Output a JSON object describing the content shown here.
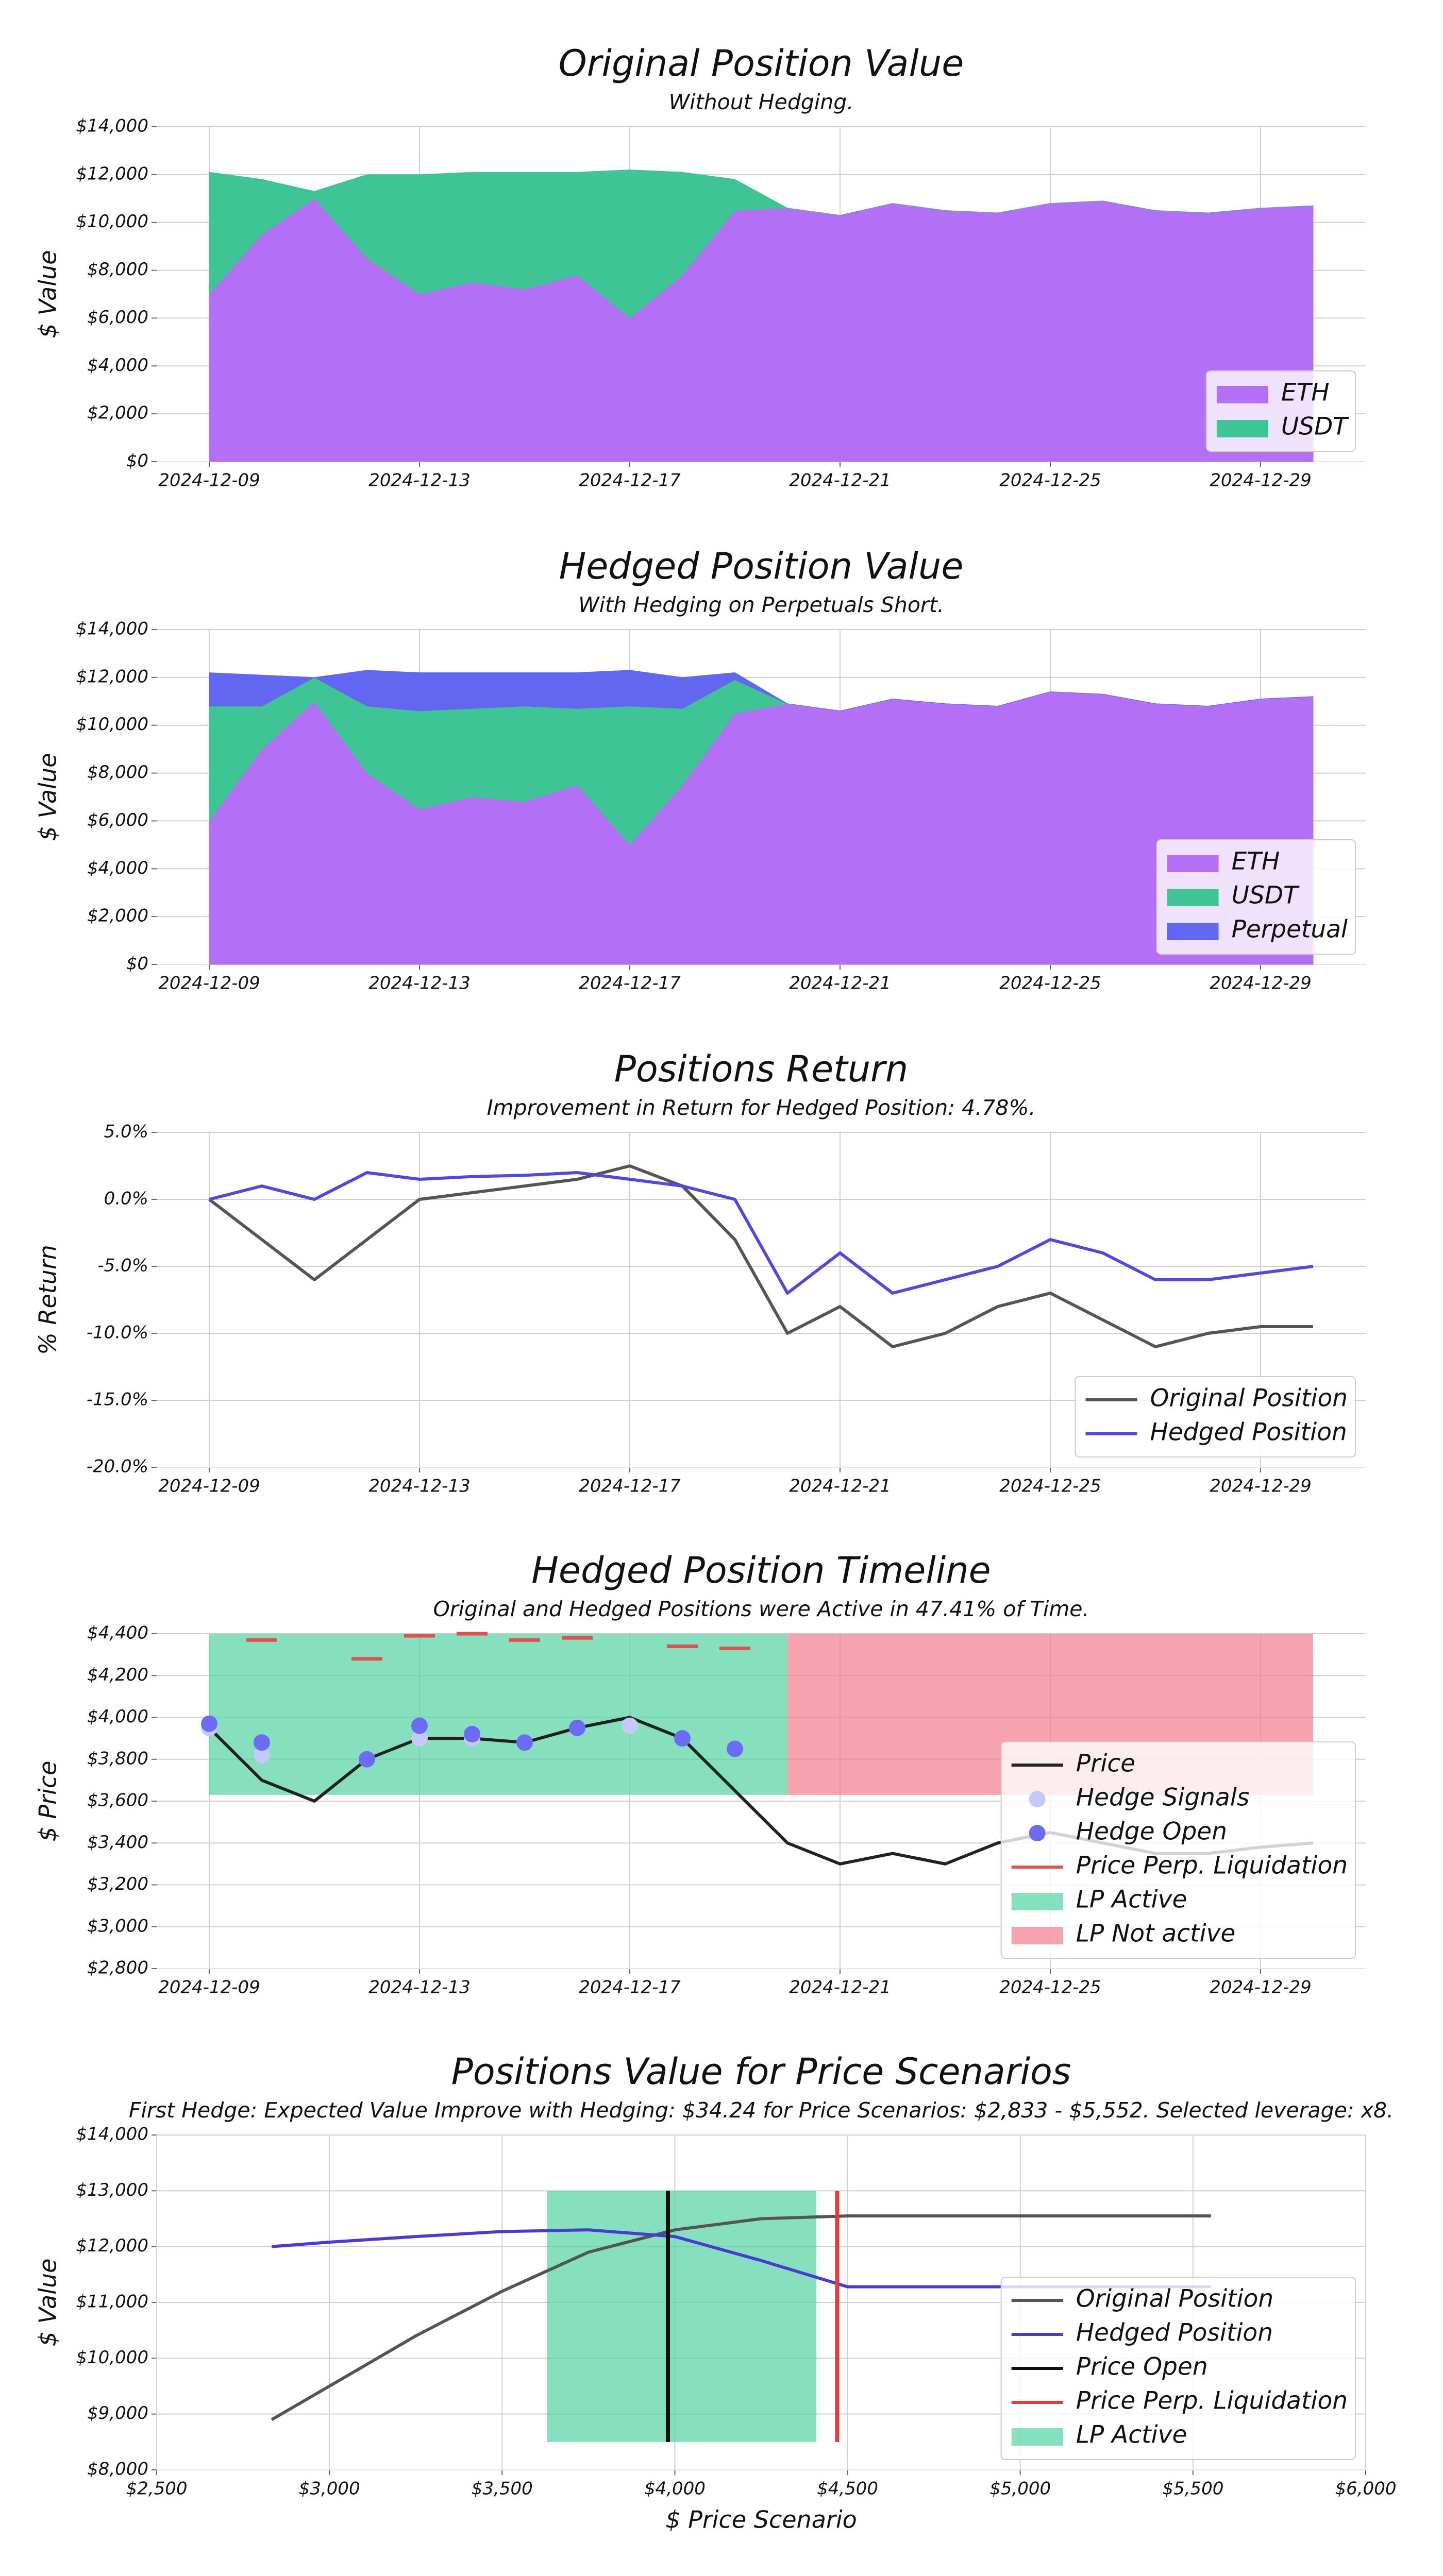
{
  "chart_data": [
    {
      "type": "area",
      "title": "Original Position Value",
      "subtitle": "Without Hedging.",
      "ylabel": "$ Value",
      "x": [
        "2024-12-09",
        "2024-12-10",
        "2024-12-11",
        "2024-12-12",
        "2024-12-13",
        "2024-12-14",
        "2024-12-15",
        "2024-12-16",
        "2024-12-17",
        "2024-12-18",
        "2024-12-19",
        "2024-12-20",
        "2024-12-21",
        "2024-12-22",
        "2024-12-23",
        "2024-12-24",
        "2024-12-25",
        "2024-12-26",
        "2024-12-27",
        "2024-12-28",
        "2024-12-29",
        "2024-12-30"
      ],
      "series": [
        {
          "name": "ETH",
          "kind": "area",
          "color": "#b36ff6",
          "values": [
            7000,
            9500,
            11000,
            8500,
            7000,
            7500,
            7200,
            7800,
            6000,
            7800,
            10500,
            10600,
            10300,
            10800,
            10500,
            10400,
            10800,
            10900,
            10500,
            10400,
            10600,
            10700
          ]
        },
        {
          "name": "USDT",
          "kind": "area",
          "color": "#3ec495",
          "values": [
            5100,
            2300,
            300,
            3500,
            5000,
            4600,
            4900,
            4300,
            6200,
            4300,
            1300,
            0,
            0,
            0,
            0,
            0,
            0,
            0,
            0,
            0,
            0,
            0
          ]
        }
      ],
      "xlim": [
        "2024-12-08",
        "2024-12-31"
      ],
      "xticks": [
        "2024-12-09",
        "2024-12-13",
        "2024-12-17",
        "2024-12-21",
        "2024-12-25",
        "2024-12-29"
      ],
      "ylim": [
        0,
        14000
      ],
      "yticks": [
        {
          "value": 0,
          "label": "$0"
        },
        {
          "value": 2000,
          "label": "$2,000"
        },
        {
          "value": 4000,
          "label": "$4,000"
        },
        {
          "value": 6000,
          "label": "$6,000"
        },
        {
          "value": 8000,
          "label": "$8,000"
        },
        {
          "value": 10000,
          "label": "$10,000"
        },
        {
          "value": 12000,
          "label": "$12,000"
        },
        {
          "value": 14000,
          "label": "$14,000"
        }
      ],
      "grid": true,
      "legend": "lower right"
    },
    {
      "type": "area",
      "title": "Hedged Position Value",
      "subtitle": "With Hedging on Perpetuals Short.",
      "ylabel": "$ Value",
      "x": [
        "2024-12-09",
        "2024-12-10",
        "2024-12-11",
        "2024-12-12",
        "2024-12-13",
        "2024-12-14",
        "2024-12-15",
        "2024-12-16",
        "2024-12-17",
        "2024-12-18",
        "2024-12-19",
        "2024-12-20",
        "2024-12-21",
        "2024-12-22",
        "2024-12-23",
        "2024-12-24",
        "2024-12-25",
        "2024-12-26",
        "2024-12-27",
        "2024-12-28",
        "2024-12-29",
        "2024-12-30"
      ],
      "series": [
        {
          "name": "ETH",
          "kind": "area",
          "color": "#b36ff6",
          "values": [
            6000,
            9000,
            11000,
            8000,
            6500,
            7000,
            6800,
            7500,
            5000,
            7500,
            10500,
            10900,
            10600,
            11100,
            10900,
            10800,
            11400,
            11300,
            10900,
            10800,
            11100,
            11200
          ]
        },
        {
          "name": "USDT",
          "kind": "area",
          "color": "#3ec495",
          "values": [
            4800,
            1800,
            1000,
            2800,
            4100,
            3700,
            4000,
            3200,
            5800,
            3200,
            1400,
            0,
            0,
            0,
            0,
            0,
            0,
            0,
            0,
            0,
            0,
            0
          ]
        },
        {
          "name": "Perpetual",
          "kind": "area",
          "color": "#6366f1",
          "values": [
            1400,
            1300,
            0,
            1500,
            1600,
            1500,
            1400,
            1500,
            1500,
            1300,
            300,
            0,
            0,
            0,
            0,
            0,
            0,
            0,
            0,
            0,
            0,
            0
          ]
        }
      ],
      "xlim": [
        "2024-12-08",
        "2024-12-31"
      ],
      "xticks": [
        "2024-12-09",
        "2024-12-13",
        "2024-12-17",
        "2024-12-21",
        "2024-12-25",
        "2024-12-29"
      ],
      "ylim": [
        0,
        14000
      ],
      "yticks": [
        {
          "value": 0,
          "label": "$0"
        },
        {
          "value": 2000,
          "label": "$2,000"
        },
        {
          "value": 4000,
          "label": "$4,000"
        },
        {
          "value": 6000,
          "label": "$6,000"
        },
        {
          "value": 8000,
          "label": "$8,000"
        },
        {
          "value": 10000,
          "label": "$10,000"
        },
        {
          "value": 12000,
          "label": "$12,000"
        },
        {
          "value": 14000,
          "label": "$14,000"
        }
      ],
      "grid": true,
      "legend": "lower right"
    },
    {
      "type": "line",
      "title": "Positions Return",
      "subtitle": "Improvement in Return for Hedged Position: 4.78%.",
      "ylabel": "% Return",
      "x": [
        "2024-12-09",
        "2024-12-10",
        "2024-12-11",
        "2024-12-12",
        "2024-12-13",
        "2024-12-14",
        "2024-12-15",
        "2024-12-16",
        "2024-12-17",
        "2024-12-18",
        "2024-12-19",
        "2024-12-20",
        "2024-12-21",
        "2024-12-22",
        "2024-12-23",
        "2024-12-24",
        "2024-12-25",
        "2024-12-26",
        "2024-12-27",
        "2024-12-28",
        "2024-12-29",
        "2024-12-30"
      ],
      "series": [
        {
          "name": "Original Position",
          "kind": "line",
          "color": "#555555",
          "values": [
            0,
            -3,
            -6,
            -3,
            0,
            0.5,
            1,
            1.5,
            2.5,
            1,
            -3,
            -10,
            -8,
            -11,
            -10,
            -8,
            -7,
            -9,
            -11,
            -10,
            -9.5,
            -9.5
          ]
        },
        {
          "name": "Hedged Position",
          "kind": "line",
          "color": "#5148e0",
          "values": [
            0,
            1,
            0,
            2,
            1.5,
            1.7,
            1.8,
            2,
            1.5,
            1,
            0,
            -7,
            -4,
            -7,
            -6,
            -5,
            -3,
            -4,
            -6,
            -6,
            -5.5,
            -5
          ]
        }
      ],
      "xlim": [
        "2024-12-08",
        "2024-12-31"
      ],
      "xticks": [
        "2024-12-09",
        "2024-12-13",
        "2024-12-17",
        "2024-12-21",
        "2024-12-25",
        "2024-12-29"
      ],
      "ylim": [
        -20,
        5
      ],
      "yticks": [
        {
          "value": -20,
          "label": "-20.0%"
        },
        {
          "value": -15,
          "label": "-15.0%"
        },
        {
          "value": -10,
          "label": "-10.0%"
        },
        {
          "value": -5,
          "label": "-5.0%"
        },
        {
          "value": 0,
          "label": "0.0%"
        },
        {
          "value": 5,
          "label": "5.0%"
        }
      ],
      "grid": true,
      "legend": "lower right"
    },
    {
      "type": "line",
      "title": "Hedged Position Timeline",
      "subtitle": "Original and Hedged Positions were Active in 47.41% of Time.",
      "ylabel": "$ Price",
      "x": [
        "2024-12-09",
        "2024-12-10",
        "2024-12-11",
        "2024-12-12",
        "2024-12-13",
        "2024-12-14",
        "2024-12-15",
        "2024-12-16",
        "2024-12-17",
        "2024-12-18",
        "2024-12-19",
        "2024-12-20",
        "2024-12-21",
        "2024-12-22",
        "2024-12-23",
        "2024-12-24",
        "2024-12-25",
        "2024-12-26",
        "2024-12-27",
        "2024-12-28",
        "2024-12-29",
        "2024-12-30"
      ],
      "series": [
        {
          "name": "Price",
          "kind": "line",
          "color": "#222222",
          "values": [
            3950,
            3700,
            3600,
            3800,
            3900,
            3900,
            3880,
            3950,
            4000,
            3900,
            3650,
            3400,
            3300,
            3350,
            3300,
            3400,
            3450,
            3400,
            3350,
            3350,
            3380,
            3400
          ]
        },
        {
          "name": "Hedge Signals",
          "kind": "scatter",
          "color": "#c4c9fa",
          "values": [
            3950,
            3820,
            null,
            3800,
            3900,
            3900,
            3880,
            3950,
            3960,
            3900,
            3850,
            null,
            null,
            null,
            null,
            null,
            null,
            null,
            null,
            null,
            null,
            null
          ]
        },
        {
          "name": "Hedge Open",
          "kind": "scatter",
          "color": "#6b6bf5",
          "values": [
            3970,
            3880,
            null,
            3800,
            3960,
            3920,
            3880,
            3950,
            null,
            3900,
            3850,
            null,
            null,
            null,
            null,
            null,
            null,
            null,
            null,
            null,
            null,
            null
          ]
        },
        {
          "name": "Price Perp. Liquidation",
          "kind": "dash",
          "color": "#e05050",
          "values": [
            null,
            4370,
            null,
            4280,
            4390,
            4400,
            4370,
            4380,
            null,
            4340,
            4330,
            null,
            null,
            null,
            null,
            null,
            null,
            null,
            null,
            null,
            null,
            null
          ]
        },
        {
          "name": "LP Active",
          "kind": "span",
          "color": "#52d3a3",
          "x": [
            "2024-12-09",
            "2024-12-20"
          ],
          "y": [
            3630,
            4400
          ]
        },
        {
          "name": "LP Not active",
          "kind": "span",
          "color": "#f47c8d",
          "x": [
            "2024-12-20",
            "2024-12-30"
          ],
          "y": [
            3630,
            4400
          ]
        }
      ],
      "xlim": [
        "2024-12-08",
        "2024-12-31"
      ],
      "xticks": [
        "2024-12-09",
        "2024-12-13",
        "2024-12-17",
        "2024-12-21",
        "2024-12-25",
        "2024-12-29"
      ],
      "ylim": [
        2800,
        4400
      ],
      "yticks": [
        {
          "value": 2800,
          "label": "$2,800"
        },
        {
          "value": 3000,
          "label": "$3,000"
        },
        {
          "value": 3200,
          "label": "$3,200"
        },
        {
          "value": 3400,
          "label": "$3,400"
        },
        {
          "value": 3600,
          "label": "$3,600"
        },
        {
          "value": 3800,
          "label": "$3,800"
        },
        {
          "value": 4000,
          "label": "$4,000"
        },
        {
          "value": 4200,
          "label": "$4,200"
        },
        {
          "value": 4400,
          "label": "$4,400"
        }
      ],
      "grid": true,
      "legend": "lower right"
    },
    {
      "type": "line",
      "title": "Positions Value for Price Scenarios",
      "subtitle": "First Hedge: Expected Value Improve with Hedging: $34.24 for Price Scenarios: $2,833 - $5,552. Selected leverage: x8.",
      "ylabel": "$ Value",
      "xlabel": "$ Price Scenario",
      "series": [
        {
          "name": "Original Position",
          "kind": "line",
          "color": "#555555",
          "x": [
            2833,
            3000,
            3250,
            3500,
            3750,
            4000,
            4250,
            4500,
            5000,
            5552
          ],
          "values": [
            8900,
            9500,
            10400,
            11200,
            11900,
            12300,
            12500,
            12550,
            12550,
            12550
          ]
        },
        {
          "name": "Hedged Position",
          "kind": "line",
          "color": "#4a3bd8",
          "x": [
            2833,
            3000,
            3250,
            3500,
            3750,
            4000,
            4250,
            4500,
            5000,
            5552
          ],
          "values": [
            12000,
            12080,
            12180,
            12270,
            12300,
            12180,
            11750,
            11280,
            11280,
            11280
          ]
        },
        {
          "name": "Price Open",
          "kind": "vline",
          "color": "#111111",
          "x": 3980,
          "y": [
            8500,
            13000
          ]
        },
        {
          "name": "Price Perp. Liquidation",
          "kind": "vline",
          "color": "#e33b3b",
          "x": 4470,
          "y": [
            8500,
            13000
          ]
        },
        {
          "name": "LP Active",
          "kind": "span",
          "color": "#52d3a3",
          "x": [
            3630,
            4410
          ],
          "y": [
            8500,
            13000
          ]
        }
      ],
      "xlim": [
        2500,
        6000
      ],
      "xticks": [
        {
          "value": 2500,
          "label": "$2,500"
        },
        {
          "value": 3000,
          "label": "$3,000"
        },
        {
          "value": 3500,
          "label": "$3,500"
        },
        {
          "value": 4000,
          "label": "$4,000"
        },
        {
          "value": 4500,
          "label": "$4,500"
        },
        {
          "value": 5000,
          "label": "$5,000"
        },
        {
          "value": 5500,
          "label": "$5,500"
        },
        {
          "value": 6000,
          "label": "$6,000"
        }
      ],
      "ylim": [
        8000,
        14000
      ],
      "yticks": [
        {
          "value": 8000,
          "label": "$8,000"
        },
        {
          "value": 9000,
          "label": "$9,000"
        },
        {
          "value": 10000,
          "label": "$10,000"
        },
        {
          "value": 11000,
          "label": "$11,000"
        },
        {
          "value": 12000,
          "label": "$12,000"
        },
        {
          "value": 13000,
          "label": "$13,000"
        },
        {
          "value": 14000,
          "label": "$14,000"
        }
      ],
      "grid": true,
      "legend": "lower right"
    }
  ]
}
